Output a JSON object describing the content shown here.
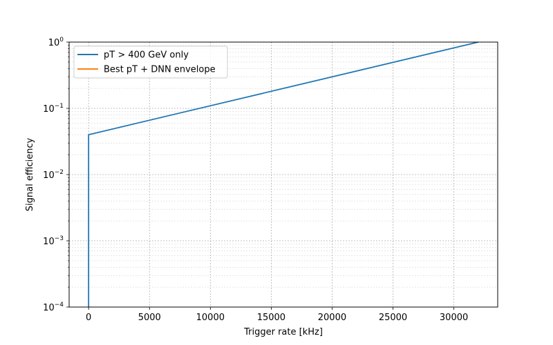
{
  "chart_data": {
    "type": "line",
    "title": "",
    "xlabel": "Trigger rate [kHz]",
    "ylabel": "Signal efficiency",
    "xlim": [
      -1600,
      33600
    ],
    "ylim": [
      0.0001,
      1
    ],
    "yscale": "log",
    "grid": true,
    "legend_position": "top-left",
    "x_ticks": [
      0,
      5000,
      10000,
      15000,
      20000,
      25000,
      30000
    ],
    "x_tick_labels": [
      "0",
      "5000",
      "10000",
      "15000",
      "20000",
      "25000",
      "30000"
    ],
    "y_ticks": [
      0.0001,
      0.001,
      0.01,
      0.1,
      1
    ],
    "y_tick_labels": [
      {
        "base": "10",
        "exp": "−4"
      },
      {
        "base": "10",
        "exp": "−3"
      },
      {
        "base": "10",
        "exp": "−2"
      },
      {
        "base": "10",
        "exp": "−1"
      },
      {
        "base": "10",
        "exp": "0"
      }
    ],
    "series": [
      {
        "name": "pT > 400 GeV only",
        "color": "#1f77b4",
        "x": [
          0,
          0,
          32000
        ],
        "y": [
          0.0001,
          0.04,
          1
        ]
      },
      {
        "name": "Best pT + DNN envelope",
        "color": "#ff7f0e",
        "x": [],
        "y": []
      }
    ]
  }
}
